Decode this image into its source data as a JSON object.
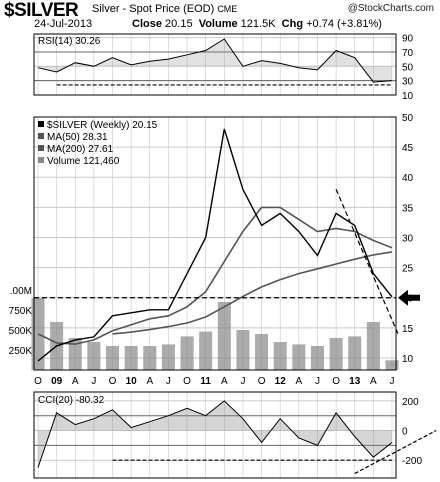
{
  "header": {
    "ticker": "$SILVER",
    "description": "Silver - Spot Price (EOD)",
    "exchange": "CME",
    "logo": "@StockCharts.com",
    "date": "24-Jul-2013",
    "close_label": "Close",
    "close_value": "20.15",
    "volume_label": "Volume",
    "volume_value": "121.5K",
    "chg_label": "Chg",
    "chg_value": "+0.74 (+3.81%)"
  },
  "colors": {
    "price": "#000000",
    "ma": "#555555",
    "fill": "#888888",
    "grid": "#c8c8c8",
    "panel_border": "#000000",
    "arrow": "#000000"
  },
  "chart_data": [
    {
      "type": "line",
      "panel": "RSI",
      "title": "RSI(14) 30.26",
      "ylim": [
        10,
        95
      ],
      "y_ticks": [
        "90",
        "70",
        "50",
        "30",
        "10"
      ],
      "reference_levels": [
        70,
        30
      ],
      "x": [
        "2008-10",
        "2009-01",
        "2009-04",
        "2009-07",
        "2009-10",
        "2010-01",
        "2010-04",
        "2010-07",
        "2010-10",
        "2011-01",
        "2011-04",
        "2011-07",
        "2011-10",
        "2012-01",
        "2012-04",
        "2012-07",
        "2012-10",
        "2013-01",
        "2013-04",
        "2013-07"
      ],
      "series": [
        {
          "values": [
            48,
            42,
            55,
            50,
            62,
            52,
            57,
            60,
            66,
            72,
            88,
            50,
            58,
            54,
            48,
            45,
            72,
            62,
            28,
            30
          ]
        }
      ],
      "annotation": "support line near 25"
    },
    {
      "type": "line",
      "panel": "Price",
      "legend": [
        "$SILVER (Weekly) 20.15",
        "MA(50) 28.31",
        "MA(200) 27.61",
        "Volume 121,460"
      ],
      "ylim": [
        8,
        50
      ],
      "y_ticks": [
        "50",
        "45",
        "40",
        "35",
        "30",
        "25",
        "20",
        "15",
        "10"
      ],
      "volume_ticks": [
        ".00M",
        "750K",
        "500K",
        "250K"
      ],
      "x_ticks": [
        "O",
        "09",
        "A",
        "J",
        "O",
        "10",
        "A",
        "J",
        "O",
        "11",
        "A",
        "J",
        "O",
        "12",
        "A",
        "J",
        "O",
        "13",
        "A",
        "J"
      ],
      "x": [
        "2008-10",
        "2009-01",
        "2009-04",
        "2009-07",
        "2009-10",
        "2010-01",
        "2010-04",
        "2010-07",
        "2010-10",
        "2011-01",
        "2011-04",
        "2011-07",
        "2011-10",
        "2012-01",
        "2012-04",
        "2012-07",
        "2012-10",
        "2013-01",
        "2013-04",
        "2013-07"
      ],
      "series": [
        {
          "name": "$SILVER (Weekly) 20.15",
          "values": [
            9.5,
            12.0,
            13.0,
            13.5,
            17.0,
            17.5,
            18.0,
            18.0,
            24.0,
            30.0,
            48.0,
            38.0,
            32.0,
            34.0,
            31.0,
            27.0,
            34.0,
            32.0,
            24.0,
            20.15
          ]
        },
        {
          "name": "MA(50) 28.31",
          "values": [
            14.0,
            12.5,
            12.3,
            13.0,
            14.5,
            15.5,
            16.5,
            17.0,
            18.5,
            21.0,
            26.0,
            31.0,
            35.0,
            35.0,
            33.0,
            31.0,
            31.5,
            31.0,
            29.5,
            28.31
          ]
        },
        {
          "name": "MA(200) 27.61",
          "values": [
            null,
            null,
            null,
            null,
            14.0,
            14.3,
            14.7,
            15.2,
            15.8,
            16.8,
            18.5,
            20.2,
            21.8,
            23.0,
            24.0,
            24.8,
            25.6,
            26.4,
            27.1,
            27.61
          ]
        }
      ],
      "volume": [
        900000,
        600000,
        400000,
        350000,
        300000,
        300000,
        300000,
        320000,
        420000,
        480000,
        850000,
        500000,
        450000,
        350000,
        320000,
        300000,
        400000,
        420000,
        600000,
        121460
      ],
      "reference_levels": [
        20
      ],
      "annotations": [
        "resistance line near 20",
        "falling trendline",
        "arrow at 20"
      ]
    },
    {
      "type": "line",
      "panel": "CCI",
      "title": "CCI(20) -80.32",
      "ylim": [
        -320,
        260
      ],
      "y_ticks": [
        "200",
        "0",
        "-200"
      ],
      "reference_levels": [
        100,
        -100
      ],
      "x": [
        "2008-10",
        "2009-01",
        "2009-04",
        "2009-07",
        "2009-10",
        "2010-01",
        "2010-04",
        "2010-07",
        "2010-10",
        "2011-01",
        "2011-04",
        "2011-07",
        "2011-10",
        "2012-01",
        "2012-04",
        "2012-07",
        "2012-10",
        "2013-01",
        "2013-04",
        "2013-07"
      ],
      "series": [
        {
          "values": [
            -250,
            120,
            40,
            80,
            140,
            20,
            60,
            100,
            150,
            100,
            200,
            80,
            -80,
            80,
            -50,
            -100,
            120,
            -40,
            -180,
            -80.32
          ]
        }
      ],
      "annotation": "support line near -200 and rising trendline"
    }
  ]
}
